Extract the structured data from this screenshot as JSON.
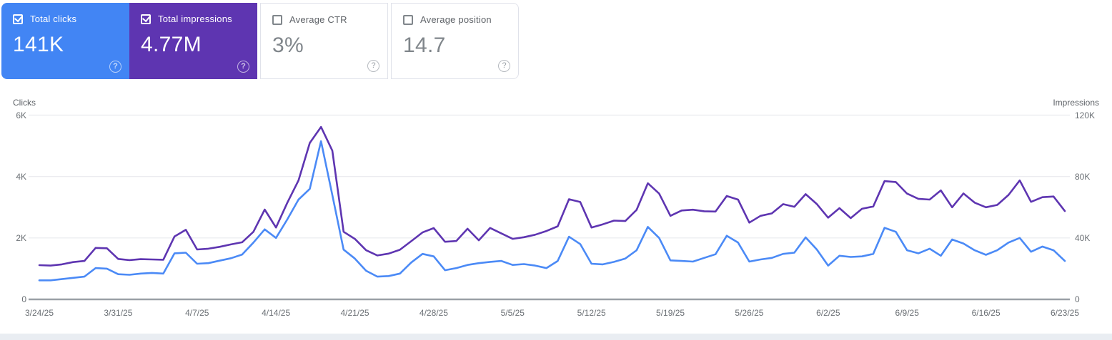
{
  "cards": [
    {
      "label": "Total clicks",
      "value": "141K",
      "checked": true,
      "bg": "#4285f4",
      "text_on_color": true
    },
    {
      "label": "Total impressions",
      "value": "4.77M",
      "checked": true,
      "bg": "#5e35b1",
      "text_on_color": true
    },
    {
      "label": "Average CTR",
      "value": "3%",
      "checked": false,
      "bg": "",
      "text_on_color": false
    },
    {
      "label": "Average position",
      "value": "14.7",
      "checked": false,
      "bg": "",
      "text_on_color": false
    }
  ],
  "help_icon_glyph": "?",
  "chart_data": {
    "type": "line",
    "grid": true,
    "legend_position": "none",
    "left_axis": {
      "title": "Clicks",
      "ticks_top_to_bottom": [
        "6K",
        "4K",
        "2K",
        "0"
      ],
      "max": 6000
    },
    "right_axis": {
      "title": "Impressions",
      "ticks_top_to_bottom": [
        "120K",
        "80K",
        "40K",
        "0"
      ],
      "max": 120000
    },
    "x_tick_labels": [
      "3/24/25",
      "3/31/25",
      "4/7/25",
      "4/14/25",
      "4/21/25",
      "4/28/25",
      "5/5/25",
      "5/12/25",
      "5/19/25",
      "5/26/25",
      "6/2/25",
      "6/9/25",
      "6/16/25",
      "6/23/25"
    ],
    "x_tick_every_n_points": 7,
    "colors": {
      "grid": "#e9eaee",
      "baseline": "#9aa0a6",
      "tick_text": "#6b7075"
    },
    "series": [
      {
        "name": "Impressions",
        "axis": "right",
        "color": "#5e35b1",
        "values": [
          22300,
          22000,
          22800,
          24300,
          25000,
          33500,
          33300,
          26300,
          25600,
          26200,
          26000,
          25800,
          41000,
          45300,
          32500,
          33000,
          34200,
          35800,
          37200,
          44000,
          58500,
          46800,
          62800,
          77500,
          101900,
          112300,
          96900,
          44000,
          39400,
          32000,
          28600,
          29800,
          32300,
          37900,
          43600,
          46400,
          37500,
          38000,
          46000,
          38500,
          46500,
          43000,
          39400,
          40500,
          42100,
          44500,
          47600,
          65200,
          63400,
          46800,
          48900,
          51300,
          51000,
          58300,
          75600,
          68900,
          54400,
          57900,
          58400,
          57400,
          57200,
          67300,
          65000,
          50000,
          54400,
          56000,
          62000,
          60300,
          68500,
          62000,
          53200,
          59400,
          52900,
          59000,
          60500,
          77000,
          76400,
          68900,
          65500,
          65000,
          71000,
          60000,
          69000,
          63000,
          60000,
          61500,
          68000,
          77500,
          63500,
          66500,
          67000,
          57500
        ]
      },
      {
        "name": "Clicks",
        "axis": "left",
        "color": "#4b8af6",
        "values": [
          620,
          620,
          660,
          700,
          740,
          1020,
          1000,
          820,
          800,
          840,
          860,
          840,
          1500,
          1520,
          1160,
          1180,
          1260,
          1340,
          1460,
          1850,
          2280,
          2000,
          2600,
          3250,
          3600,
          5150,
          3400,
          1620,
          1330,
          930,
          740,
          760,
          840,
          1200,
          1480,
          1400,
          950,
          1020,
          1120,
          1180,
          1220,
          1250,
          1120,
          1150,
          1100,
          1020,
          1250,
          2040,
          1800,
          1160,
          1140,
          1220,
          1330,
          1600,
          2360,
          2000,
          1270,
          1250,
          1230,
          1350,
          1470,
          2070,
          1850,
          1230,
          1300,
          1350,
          1480,
          1520,
          2020,
          1620,
          1100,
          1420,
          1380,
          1400,
          1480,
          2330,
          2200,
          1600,
          1500,
          1650,
          1420,
          1950,
          1820,
          1600,
          1450,
          1600,
          1850,
          2000,
          1550,
          1720,
          1600,
          1250
        ]
      }
    ]
  }
}
